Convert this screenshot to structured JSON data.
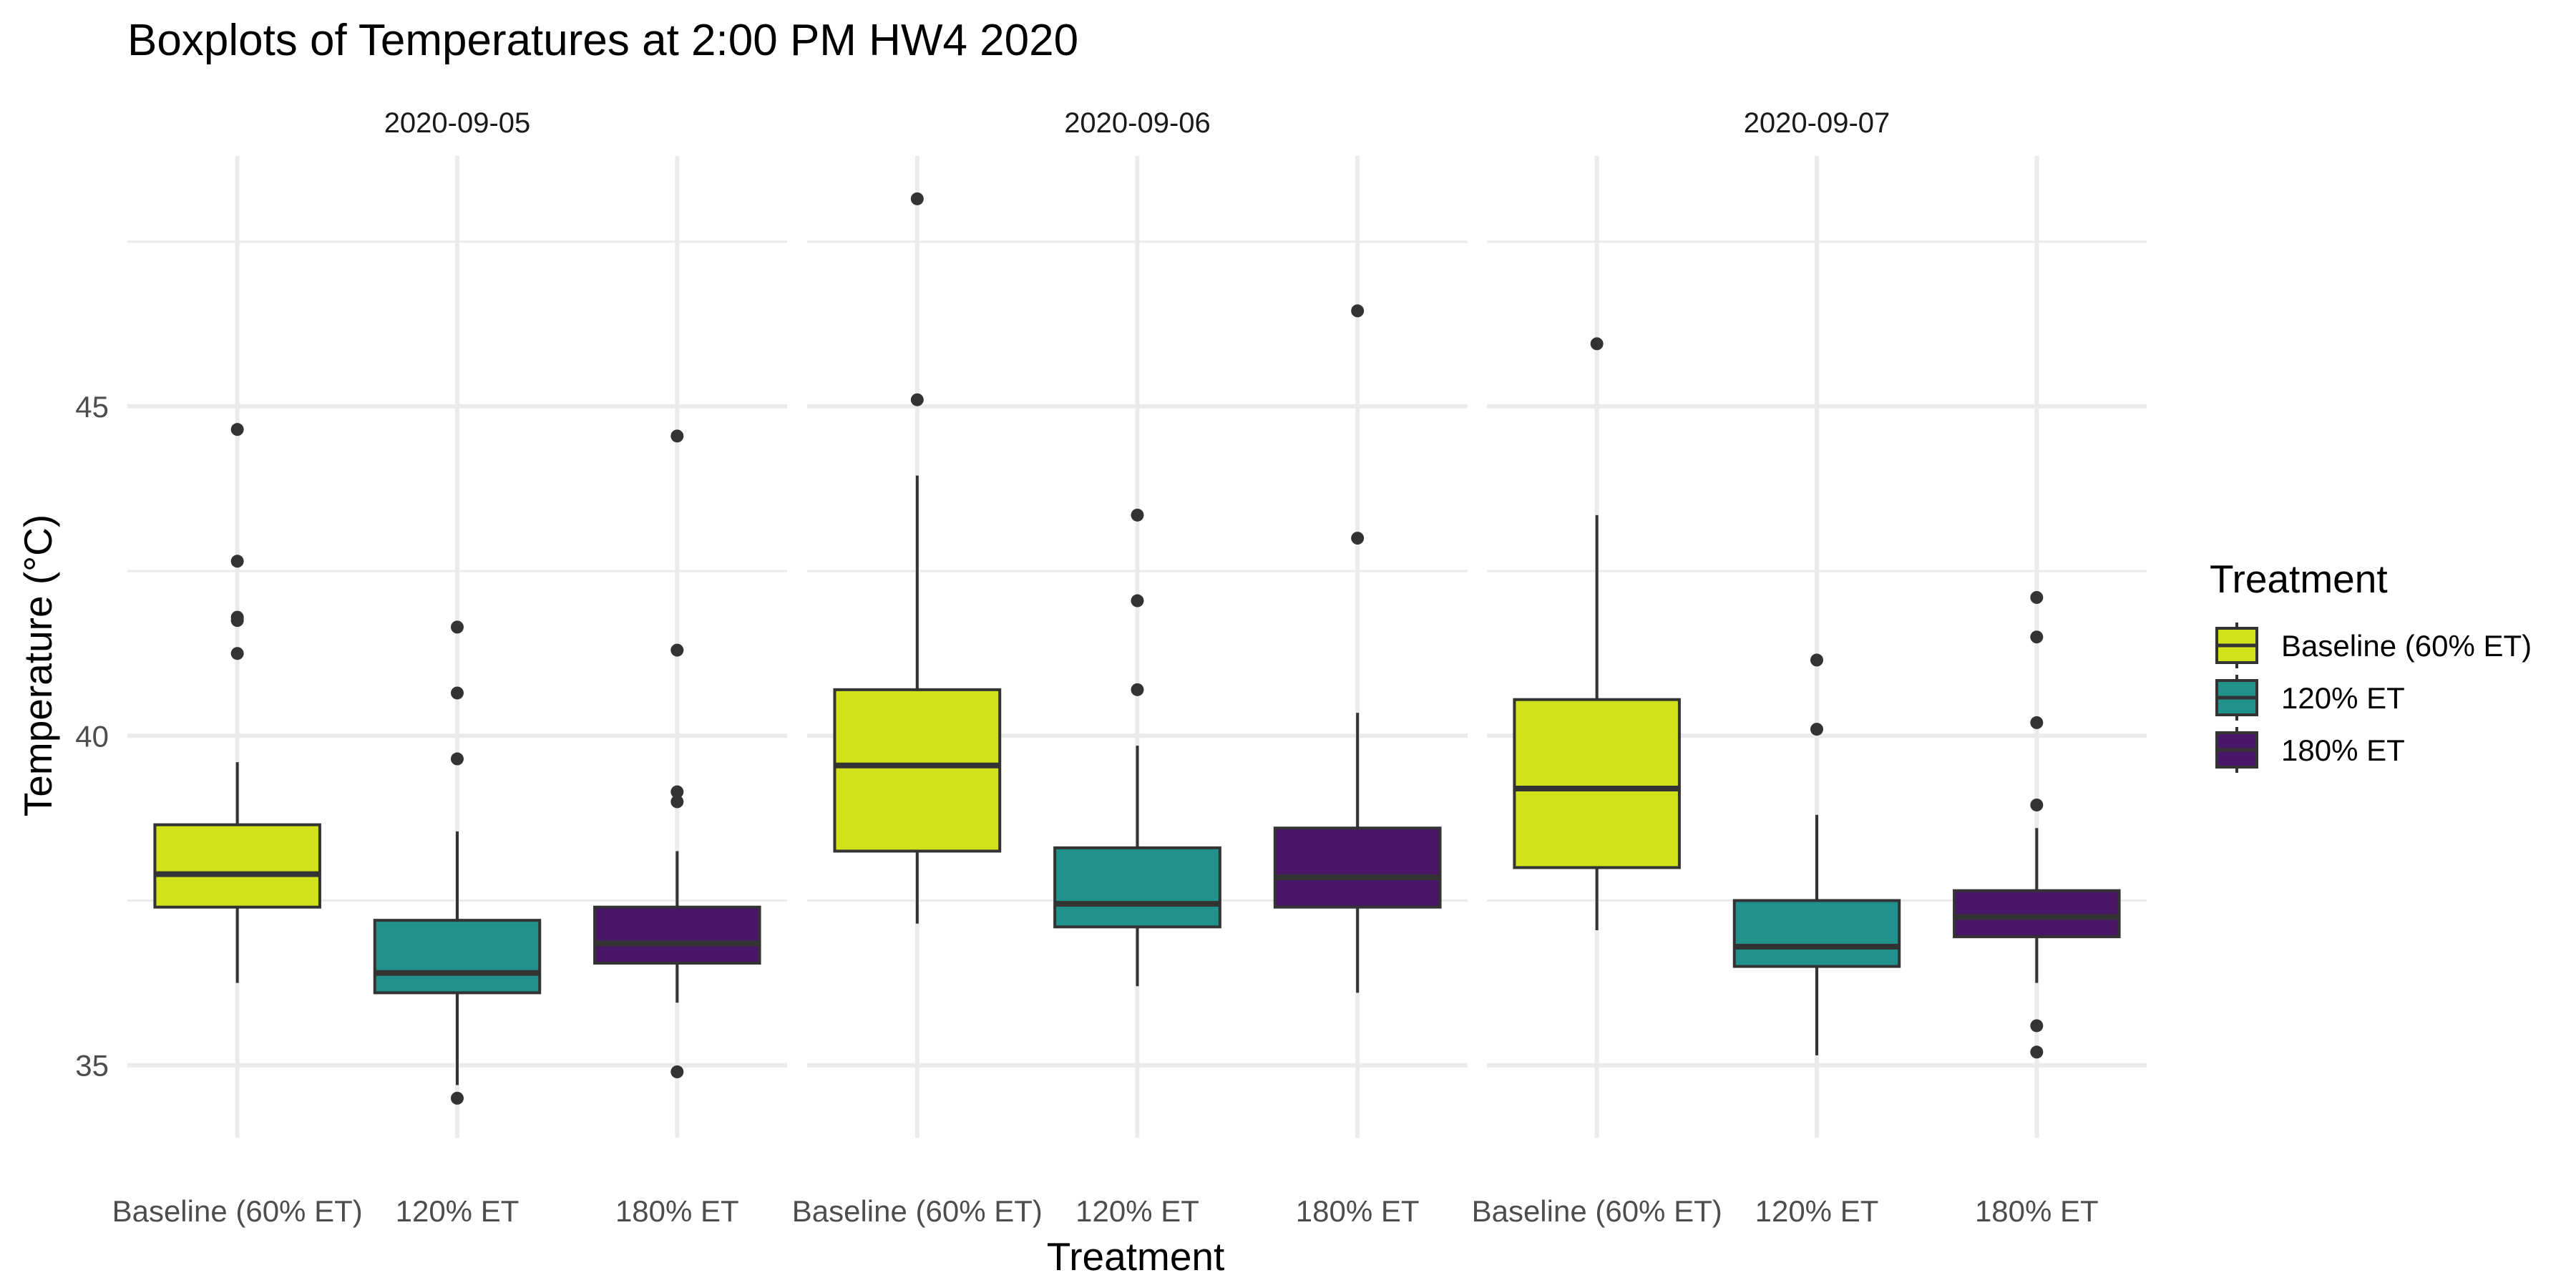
{
  "chart_data": {
    "type": "boxplot",
    "title": "Boxplots of Temperatures at 2:00 PM HW4 2020",
    "xlabel": "Treatment",
    "ylabel": "Temperature (°C)",
    "ylim": [
      33.9,
      48.8
    ],
    "yticks": [
      35,
      40,
      45
    ],
    "grid": true,
    "legend": {
      "title": "Treatment",
      "position": "right",
      "entries": [
        {
          "label": "Baseline (60% ET)",
          "color": "#d1e21b"
        },
        {
          "label": "120% ET",
          "color": "#21918c"
        },
        {
          "label": "180% ET",
          "color": "#481567"
        }
      ]
    },
    "categories": [
      "Baseline (60% ET)",
      "120% ET",
      "180% ET"
    ],
    "colors": [
      "#d1e21b",
      "#21918c",
      "#481567"
    ],
    "panels": [
      {
        "label": "2020-09-05",
        "boxes": [
          {
            "category": "Baseline (60% ET)",
            "whisker_low": 36.25,
            "q1": 37.4,
            "median": 37.9,
            "q3": 38.65,
            "whisker_high": 39.6,
            "outliers": [
              41.25,
              41.75,
              41.8,
              42.65,
              44.65
            ]
          },
          {
            "category": "120% ET",
            "whisker_low": 34.7,
            "q1": 36.1,
            "median": 36.4,
            "q3": 37.2,
            "whisker_high": 38.55,
            "outliers": [
              34.5,
              39.65,
              40.65,
              41.65
            ]
          },
          {
            "category": "180% ET",
            "whisker_low": 35.95,
            "q1": 36.55,
            "median": 36.85,
            "q3": 37.4,
            "whisker_high": 38.25,
            "outliers": [
              34.9,
              39.0,
              39.15,
              41.3,
              44.55
            ]
          }
        ]
      },
      {
        "label": "2020-09-06",
        "boxes": [
          {
            "category": "Baseline (60% ET)",
            "whisker_low": 37.15,
            "q1": 38.25,
            "median": 39.55,
            "q3": 40.7,
            "whisker_high": 43.95,
            "outliers": [
              45.1,
              48.15
            ]
          },
          {
            "category": "120% ET",
            "whisker_low": 36.2,
            "q1": 37.1,
            "median": 37.45,
            "q3": 38.3,
            "whisker_high": 39.85,
            "outliers": [
              40.7,
              42.05,
              43.35
            ]
          },
          {
            "category": "180% ET",
            "whisker_low": 36.1,
            "q1": 37.4,
            "median": 37.85,
            "q3": 38.6,
            "whisker_high": 40.35,
            "outliers": [
              43.0,
              46.45
            ]
          }
        ]
      },
      {
        "label": "2020-09-07",
        "boxes": [
          {
            "category": "Baseline (60% ET)",
            "whisker_low": 37.05,
            "q1": 38.0,
            "median": 39.2,
            "q3": 40.55,
            "whisker_high": 43.35,
            "outliers": [
              45.95
            ]
          },
          {
            "category": "120% ET",
            "whisker_low": 35.15,
            "q1": 36.5,
            "median": 36.8,
            "q3": 37.5,
            "whisker_high": 38.8,
            "outliers": [
              40.1,
              41.15
            ]
          },
          {
            "category": "180% ET",
            "whisker_low": 36.25,
            "q1": 36.95,
            "median": 37.25,
            "q3": 37.65,
            "whisker_high": 38.6,
            "outliers": [
              35.2,
              35.6,
              38.95,
              40.2,
              41.5,
              42.1
            ]
          }
        ]
      }
    ]
  }
}
